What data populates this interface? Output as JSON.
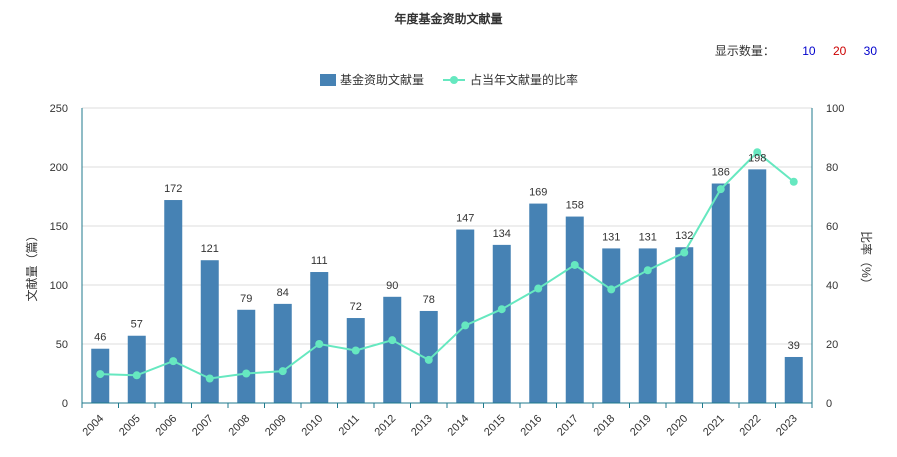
{
  "header": {
    "title": "年度基金资助文献量"
  },
  "count_selector": {
    "label": "显示数量：",
    "options": [
      {
        "label": "10",
        "color": "#0000cc"
      },
      {
        "label": "20",
        "color": "#cc0000"
      },
      {
        "label": "30",
        "color": "#0000cc"
      }
    ]
  },
  "chart_data": {
    "type": "bar",
    "title": "年度基金资助文献量",
    "categories": [
      "2004",
      "2005",
      "2006",
      "2007",
      "2008",
      "2009",
      "2010",
      "2011",
      "2012",
      "2013",
      "2014",
      "2015",
      "2016",
      "2017",
      "2018",
      "2019",
      "2020",
      "2021",
      "2022",
      "2023"
    ],
    "series": [
      {
        "name": "基金资助文献量",
        "type": "bar",
        "axis": "left",
        "color": "#4682b4",
        "values": [
          46,
          57,
          172,
          121,
          79,
          84,
          111,
          72,
          90,
          78,
          147,
          134,
          169,
          158,
          131,
          131,
          132,
          186,
          198,
          39
        ]
      },
      {
        "name": "占当年文献量的比率",
        "type": "line",
        "axis": "right",
        "color": "#66e8c0",
        "values": [
          9.8,
          9.4,
          14.2,
          8.3,
          10.0,
          10.8,
          20.0,
          17.8,
          21.3,
          14.6,
          26.3,
          31.8,
          38.8,
          46.8,
          38.5,
          45.0,
          51.0,
          72.5,
          85.0,
          75.0
        ]
      }
    ],
    "ylabel": "文献量（篇）",
    "y2label": "比率（%）",
    "ylim": [
      0,
      250
    ],
    "yticks": [
      0,
      50,
      100,
      150,
      200,
      250
    ],
    "y2lim": [
      0,
      100
    ],
    "y2ticks": [
      0,
      20,
      40,
      60,
      80,
      100
    ],
    "grid": true,
    "legend_position": "top"
  }
}
